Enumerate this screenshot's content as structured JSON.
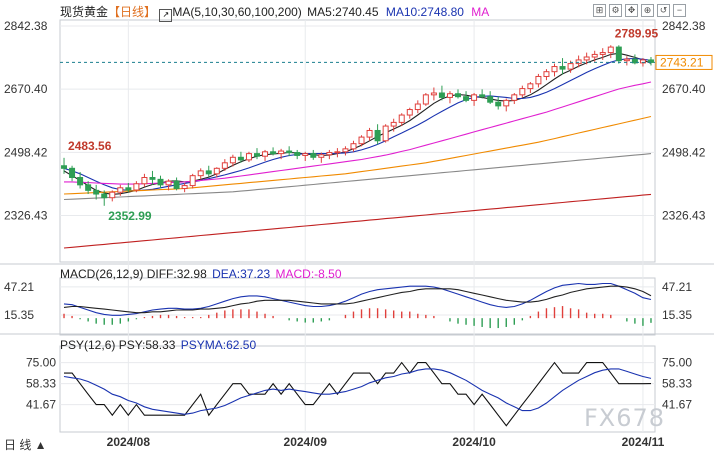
{
  "header": {
    "instrument": "现货黄金",
    "period": "【日线】",
    "ma_title": "MA(5,10,30,60,100,200)",
    "ma5": "MA5:2740.45",
    "ma10": "MA10:2748.80",
    "ma_extra": "MA"
  },
  "toolbar_icons": [
    "expand-icon",
    "settings-icon",
    "pan-icon",
    "zoom-icon",
    "restore-icon",
    "minimize-icon"
  ],
  "macd_header": {
    "title": "MACD(26,12,9)",
    "diff": "DIFF:32.98",
    "dea": "DEA:37.23",
    "macd": "MACD:-8.50"
  },
  "psy_header": {
    "title": "PSY(12,6)",
    "psy": "PSY:58.33",
    "psyma": "PSYMA:62.50"
  },
  "watermark": "FX678",
  "footer_label": "日 线 ▲",
  "colors": {
    "up": "#e0403c",
    "down": "#2e9e54",
    "ma5": "#222222",
    "ma10": "#1a33b0",
    "ma30": "#e020d0",
    "ma60": "#f08a00",
    "ma100": "#888888",
    "ma200": "#c02020",
    "diff": "#1a33b0",
    "dea": "#222222",
    "psy": "#111111",
    "psyma": "#1a33b0",
    "grid": "#e8eaed",
    "axis": "#c7cbd1",
    "price_tag": "#f08a00"
  },
  "chart_data": {
    "type": "candlestick",
    "price_axis": {
      "ticks": [
        2842.38,
        2670.4,
        2498.42,
        2326.43
      ],
      "labels": [
        "2842.38",
        "2670.40",
        "2498.42",
        "2326.43"
      ]
    },
    "x_labels": [
      "2024/08",
      "2024/09",
      "2024/10",
      "2024/11"
    ],
    "x_label_index": [
      8,
      30,
      51,
      72
    ],
    "annotations": [
      {
        "text": "2483.56",
        "index": 0,
        "value": 2483.56,
        "kind": "high"
      },
      {
        "text": "2352.99",
        "index": 5,
        "value": 2352.99,
        "kind": "low"
      },
      {
        "text": "2789.95",
        "index": 68,
        "value": 2789.95,
        "kind": "high"
      }
    ],
    "current_price": {
      "text": "2743.21",
      "value": 2743.21
    },
    "candles": [
      [
        2462,
        2483.56,
        2440,
        2455
      ],
      [
        2455,
        2462,
        2420,
        2430
      ],
      [
        2430,
        2445,
        2400,
        2410
      ],
      [
        2410,
        2420,
        2385,
        2395
      ],
      [
        2395,
        2410,
        2370,
        2385
      ],
      [
        2385,
        2395,
        2352.99,
        2375
      ],
      [
        2375,
        2395,
        2365,
        2390
      ],
      [
        2390,
        2410,
        2380,
        2402
      ],
      [
        2402,
        2415,
        2390,
        2396
      ],
      [
        2396,
        2420,
        2390,
        2413
      ],
      [
        2413,
        2440,
        2405,
        2430
      ],
      [
        2430,
        2448,
        2410,
        2425
      ],
      [
        2425,
        2435,
        2400,
        2410
      ],
      [
        2410,
        2425,
        2395,
        2420
      ],
      [
        2420,
        2430,
        2395,
        2400
      ],
      [
        2400,
        2415,
        2390,
        2408
      ],
      [
        2408,
        2440,
        2400,
        2435
      ],
      [
        2435,
        2455,
        2425,
        2448
      ],
      [
        2448,
        2462,
        2432,
        2440
      ],
      [
        2440,
        2458,
        2430,
        2455
      ],
      [
        2455,
        2480,
        2448,
        2470
      ],
      [
        2470,
        2492,
        2460,
        2485
      ],
      [
        2485,
        2500,
        2470,
        2478
      ],
      [
        2478,
        2500,
        2472,
        2495
      ],
      [
        2495,
        2510,
        2480,
        2488
      ],
      [
        2488,
        2505,
        2475,
        2500
      ],
      [
        2500,
        2512,
        2490,
        2495
      ],
      [
        2495,
        2508,
        2480,
        2502
      ],
      [
        2502,
        2515,
        2488,
        2498
      ],
      [
        2498,
        2505,
        2480,
        2490
      ],
      [
        2490,
        2500,
        2475,
        2495
      ],
      [
        2495,
        2505,
        2478,
        2485
      ],
      [
        2485,
        2498,
        2470,
        2492
      ],
      [
        2492,
        2505,
        2480,
        2498
      ],
      [
        2498,
        2510,
        2485,
        2500
      ],
      [
        2500,
        2515,
        2490,
        2508
      ],
      [
        2508,
        2530,
        2500,
        2522
      ],
      [
        2522,
        2545,
        2515,
        2540
      ],
      [
        2540,
        2565,
        2530,
        2558
      ],
      [
        2558,
        2575,
        2520,
        2530
      ],
      [
        2530,
        2575,
        2525,
        2570
      ],
      [
        2570,
        2590,
        2555,
        2580
      ],
      [
        2580,
        2605,
        2570,
        2600
      ],
      [
        2600,
        2620,
        2590,
        2615
      ],
      [
        2615,
        2640,
        2605,
        2630
      ],
      [
        2630,
        2660,
        2625,
        2655
      ],
      [
        2655,
        2675,
        2640,
        2660
      ],
      [
        2660,
        2680,
        2640,
        2648
      ],
      [
        2648,
        2665,
        2632,
        2658
      ],
      [
        2658,
        2670,
        2645,
        2650
      ],
      [
        2650,
        2665,
        2635,
        2640
      ],
      [
        2640,
        2660,
        2625,
        2655
      ],
      [
        2655,
        2670,
        2645,
        2650
      ],
      [
        2650,
        2665,
        2630,
        2635
      ],
      [
        2635,
        2650,
        2615,
        2625
      ],
      [
        2625,
        2645,
        2610,
        2640
      ],
      [
        2640,
        2660,
        2630,
        2655
      ],
      [
        2655,
        2680,
        2648,
        2672
      ],
      [
        2672,
        2690,
        2660,
        2685
      ],
      [
        2685,
        2712,
        2675,
        2705
      ],
      [
        2705,
        2725,
        2695,
        2718
      ],
      [
        2718,
        2740,
        2705,
        2732
      ],
      [
        2732,
        2755,
        2710,
        2725
      ],
      [
        2725,
        2748,
        2715,
        2740
      ],
      [
        2740,
        2762,
        2730,
        2750
      ],
      [
        2750,
        2770,
        2738,
        2758
      ],
      [
        2758,
        2775,
        2745,
        2765
      ],
      [
        2765,
        2782,
        2750,
        2770
      ],
      [
        2770,
        2789.95,
        2755,
        2785
      ],
      [
        2785,
        2789.95,
        2740,
        2748
      ],
      [
        2748,
        2760,
        2735,
        2752
      ],
      [
        2752,
        2765,
        2738,
        2742
      ],
      [
        2742,
        2755,
        2732,
        2750
      ],
      [
        2750,
        2758,
        2735,
        2743.21
      ]
    ],
    "ma": [
      {
        "name": "MA5",
        "values": [
          2448,
          2435,
          2422,
          2408,
          2395,
          2388,
          2384,
          2386,
          2390,
          2395,
          2404,
          2411,
          2415,
          2420,
          2421,
          2418,
          2420,
          2425,
          2431,
          2440,
          2452,
          2463,
          2473,
          2481,
          2488,
          2492,
          2494,
          2496,
          2498,
          2497,
          2494,
          2492,
          2490,
          2491,
          2495,
          2500,
          2508,
          2518,
          2530,
          2542,
          2552,
          2562,
          2572,
          2585,
          2600,
          2616,
          2632,
          2644,
          2652,
          2656,
          2654,
          2650,
          2648,
          2644,
          2640,
          2638,
          2640,
          2646,
          2655,
          2668,
          2683,
          2698,
          2712,
          2722,
          2733,
          2742,
          2750,
          2757,
          2765,
          2768,
          2763,
          2757,
          2750,
          2740.45
        ]
      },
      {
        "name": "MA10",
        "values": [
          2455,
          2448,
          2440,
          2430,
          2420,
          2410,
          2402,
          2397,
          2395,
          2394,
          2396,
          2398,
          2402,
          2406,
          2410,
          2414,
          2418,
          2422,
          2427,
          2432,
          2437,
          2443,
          2449,
          2456,
          2464,
          2472,
          2479,
          2485,
          2490,
          2493,
          2495,
          2495,
          2495,
          2495,
          2496,
          2497,
          2500,
          2505,
          2512,
          2520,
          2530,
          2541,
          2551,
          2562,
          2573,
          2585,
          2598,
          2610,
          2622,
          2633,
          2642,
          2648,
          2651,
          2652,
          2650,
          2648,
          2645,
          2645,
          2648,
          2654,
          2662,
          2672,
          2683,
          2694,
          2705,
          2716,
          2726,
          2735,
          2744,
          2750,
          2753,
          2754,
          2752,
          2748.8
        ]
      },
      {
        "name": "MA30",
        "scale": "linear",
        "values": [
          2418,
          2418,
          2417,
          2416,
          2415,
          2414,
          2413,
          2412,
          2412,
          2412,
          2413,
          2414,
          2415,
          2416,
          2417,
          2418,
          2420,
          2422,
          2424,
          2426,
          2428,
          2431,
          2434,
          2437,
          2440,
          2443,
          2446,
          2449,
          2452,
          2455,
          2458,
          2461,
          2464,
          2467,
          2470,
          2473,
          2476,
          2479,
          2483,
          2487,
          2491,
          2496,
          2501,
          2506,
          2512,
          2518,
          2524,
          2530,
          2536,
          2542,
          2548,
          2554,
          2560,
          2566,
          2572,
          2578,
          2584,
          2590,
          2596,
          2602,
          2608,
          2615,
          2622,
          2629,
          2636,
          2643,
          2650,
          2657,
          2664,
          2671,
          2676,
          2681,
          2685,
          2690
        ]
      },
      {
        "name": "MA60",
        "values": [
          2385,
          2386,
          2387,
          2388,
          2389,
          2390,
          2391,
          2392,
          2393,
          2394,
          2395,
          2396,
          2397,
          2398,
          2399,
          2400,
          2402,
          2404,
          2406,
          2408,
          2410,
          2412,
          2414,
          2416,
          2418,
          2420,
          2422,
          2424,
          2426,
          2428,
          2430,
          2432,
          2434,
          2436,
          2438,
          2440,
          2443,
          2446,
          2449,
          2452,
          2455,
          2458,
          2461,
          2464,
          2467,
          2470,
          2474,
          2478,
          2482,
          2486,
          2490,
          2494,
          2498,
          2502,
          2506,
          2510,
          2514,
          2518,
          2522,
          2526,
          2531,
          2536,
          2541,
          2546,
          2551,
          2556,
          2561,
          2566,
          2571,
          2576,
          2581,
          2586,
          2591,
          2596
        ]
      },
      {
        "name": "MA100",
        "values": [
          2370,
          2371,
          2372,
          2373,
          2374,
          2375,
          2376,
          2377,
          2378,
          2379,
          2380,
          2381,
          2382,
          2383,
          2384,
          2385,
          2386,
          2387,
          2388,
          2389,
          2390,
          2391,
          2393,
          2395,
          2397,
          2399,
          2401,
          2403,
          2405,
          2407,
          2409,
          2411,
          2413,
          2415,
          2417,
          2419,
          2421,
          2423,
          2425,
          2427,
          2429,
          2431,
          2433,
          2435,
          2437,
          2439,
          2441,
          2443,
          2445,
          2447,
          2449,
          2451,
          2453,
          2455,
          2457,
          2459,
          2461,
          2463,
          2465,
          2467,
          2469,
          2471,
          2473,
          2475,
          2477,
          2479,
          2481,
          2483,
          2485,
          2487,
          2489,
          2491,
          2493,
          2495
        ]
      },
      {
        "name": "MA200",
        "values": [
          2238,
          2240,
          2242,
          2244,
          2246,
          2248,
          2250,
          2252,
          2254,
          2256,
          2258,
          2260,
          2262,
          2264,
          2266,
          2268,
          2270,
          2272,
          2274,
          2276,
          2278,
          2280,
          2282,
          2284,
          2286,
          2288,
          2290,
          2292,
          2294,
          2296,
          2298,
          2300,
          2302,
          2304,
          2306,
          2308,
          2310,
          2312,
          2314,
          2316,
          2318,
          2320,
          2322,
          2324,
          2326,
          2328,
          2330,
          2332,
          2334,
          2336,
          2338,
          2340,
          2342,
          2344,
          2346,
          2348,
          2350,
          2352,
          2354,
          2356,
          2358,
          2360,
          2362,
          2364,
          2366,
          2368,
          2370,
          2372,
          2374,
          2376,
          2378,
          2380,
          2382,
          2384
        ]
      }
    ],
    "macd": {
      "axis": {
        "ticks": [
          47.21,
          15.35
        ],
        "labels": [
          "47.21",
          "15.35"
        ],
        "range": [
          -5,
          55
        ]
      },
      "diff": [
        28,
        27,
        24,
        21,
        18,
        16,
        15,
        15,
        16,
        17,
        19,
        21,
        22,
        23,
        23,
        22,
        22,
        23,
        25,
        28,
        31,
        34,
        36,
        37,
        37,
        36,
        34,
        32,
        30,
        28,
        26,
        25,
        25,
        26,
        28,
        31,
        35,
        39,
        42,
        44,
        45,
        46,
        47,
        48,
        48,
        48,
        47,
        45,
        42,
        39,
        36,
        33,
        30,
        27,
        25,
        24,
        25,
        28,
        32,
        37,
        42,
        46,
        49,
        50,
        51,
        50,
        50,
        51,
        51,
        48,
        44,
        40,
        35,
        32.98
      ],
      "dea": [
        24,
        25,
        25,
        24,
        23,
        22,
        21,
        20,
        19,
        18,
        18,
        19,
        19,
        20,
        21,
        21,
        21,
        22,
        22,
        23,
        24,
        26,
        28,
        29,
        31,
        32,
        32,
        32,
        32,
        31,
        30,
        29,
        28,
        28,
        28,
        28,
        29,
        31,
        33,
        35,
        37,
        39,
        41,
        42,
        44,
        45,
        45,
        45,
        45,
        44,
        42,
        40,
        38,
        36,
        34,
        32,
        31,
        30,
        30,
        31,
        33,
        36,
        38,
        41,
        43,
        45,
        46,
        47,
        48,
        48,
        47,
        45,
        42,
        37.23
      ],
      "hist": [
        8,
        4,
        -2,
        -6,
        -10,
        -12,
        -12,
        -10,
        -6,
        -2,
        2,
        4,
        6,
        6,
        4,
        2,
        2,
        2,
        6,
        10,
        14,
        16,
        16,
        16,
        12,
        8,
        4,
        0,
        -4,
        -6,
        -8,
        -8,
        -6,
        -4,
        0,
        6,
        12,
        16,
        18,
        18,
        16,
        14,
        12,
        12,
        8,
        6,
        4,
        0,
        -6,
        -10,
        -12,
        -14,
        -16,
        -18,
        -18,
        -16,
        -12,
        -4,
        4,
        12,
        18,
        20,
        22,
        18,
        16,
        10,
        8,
        8,
        6,
        0,
        -6,
        -10,
        -14,
        -8.5
      ]
    },
    "psy": {
      "axis": {
        "ticks": [
          75.0,
          58.33,
          41.67
        ],
        "labels": [
          "75.00",
          "58.33",
          "41.67"
        ],
        "range": [
          20,
          85
        ]
      },
      "psy": [
        66.7,
        66.7,
        58.3,
        50.0,
        41.7,
        41.7,
        33.3,
        41.7,
        33.3,
        41.7,
        33.3,
        33.3,
        33.3,
        33.3,
        33.3,
        33.3,
        41.7,
        50.0,
        33.3,
        41.7,
        50.0,
        58.3,
        58.3,
        50.0,
        50.0,
        50.0,
        58.3,
        50.0,
        58.3,
        50.0,
        41.7,
        41.7,
        50.0,
        58.3,
        50.0,
        58.3,
        66.7,
        66.7,
        66.7,
        58.3,
        66.7,
        66.7,
        75.0,
        66.7,
        75.0,
        75.0,
        66.7,
        58.3,
        58.3,
        50.0,
        50.0,
        41.7,
        50.0,
        41.7,
        33.3,
        25.0,
        33.3,
        41.7,
        50.0,
        58.3,
        66.7,
        75.0,
        66.7,
        66.7,
        66.7,
        75.0,
        75.0,
        75.0,
        66.7,
        58.3,
        58.3,
        58.3,
        58.3,
        58.33
      ],
      "psyma": [
        64,
        63,
        62,
        60,
        57,
        54,
        50,
        48,
        45,
        43,
        40,
        38,
        37,
        36,
        35,
        34,
        35,
        37,
        38,
        39,
        41,
        44,
        47,
        49,
        51,
        53,
        54,
        53,
        54,
        53,
        52,
        51,
        50,
        50,
        51,
        52,
        54,
        56,
        59,
        61,
        63,
        64,
        66,
        67,
        69,
        70,
        70,
        69,
        67,
        64,
        61,
        57,
        53,
        50,
        47,
        43,
        40,
        37,
        37,
        39,
        43,
        48,
        53,
        57,
        61,
        64,
        67,
        69,
        70,
        70,
        68,
        66,
        64,
        62.5
      ]
    }
  }
}
